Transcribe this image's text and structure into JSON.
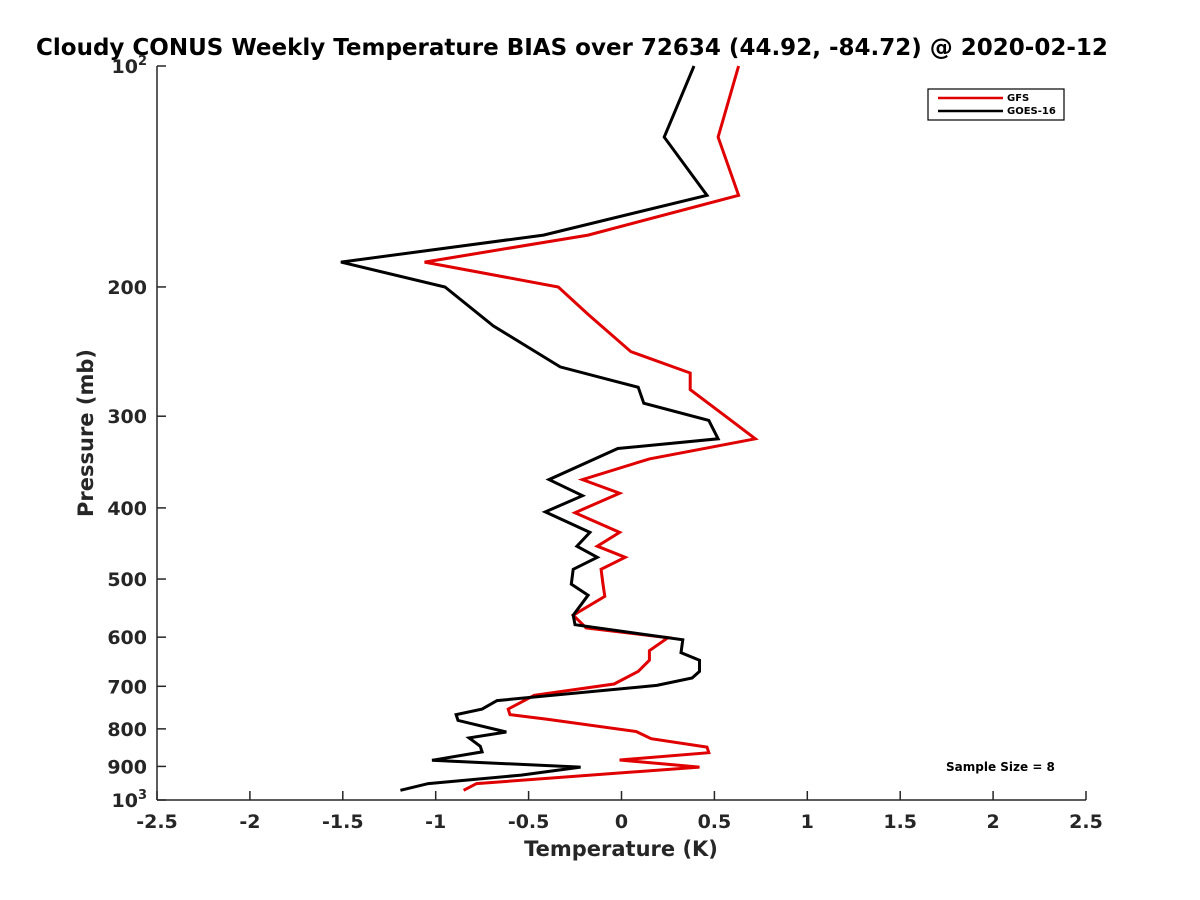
{
  "chart_data": {
    "type": "line",
    "title": "Cloudy CONUS Weekly Temperature BIAS over 72634 (44.92, -84.72) @ 2020-02-12",
    "xlabel": "Temperature (K)",
    "ylabel": "Pressure (mb)",
    "xlim": [
      -2.5,
      2.5
    ],
    "ylim": [
      100,
      1000
    ],
    "y_scale": "log",
    "y_reversed": true,
    "grid": false,
    "legend_position": "top-right",
    "x_ticks": [
      -2.5,
      -2,
      -1.5,
      -1,
      -0.5,
      0,
      0.5,
      1,
      1.5,
      2,
      2.5
    ],
    "x_tick_labels": [
      "-2.5",
      "-2",
      "-1.5",
      "-1",
      "-0.5",
      "0",
      "0.5",
      "1",
      "1.5",
      "2",
      "2.5"
    ],
    "y_ticks": [
      100,
      200,
      300,
      400,
      500,
      600,
      700,
      800,
      900,
      1000
    ],
    "y_tick_labels": [
      {
        "base": "10",
        "exp": "2"
      },
      {
        "base": "200",
        "exp": ""
      },
      {
        "base": "300",
        "exp": ""
      },
      {
        "base": "400",
        "exp": ""
      },
      {
        "base": "500",
        "exp": ""
      },
      {
        "base": "600",
        "exp": ""
      },
      {
        "base": "700",
        "exp": ""
      },
      {
        "base": "800",
        "exp": ""
      },
      {
        "base": "900",
        "exp": ""
      },
      {
        "base": "10",
        "exp": "3"
      }
    ],
    "annotation": "Sample Size = 8",
    "series": [
      {
        "name": "GFS",
        "color": "#e00000",
        "points": [
          [
            0.63,
            100
          ],
          [
            0.52,
            125
          ],
          [
            0.63,
            150
          ],
          [
            -0.18,
            170
          ],
          [
            -1.06,
            185
          ],
          [
            -0.34,
            200
          ],
          [
            -0.18,
            218
          ],
          [
            0.05,
            245
          ],
          [
            0.37,
            262
          ],
          [
            0.37,
            276
          ],
          [
            0.56,
            300
          ],
          [
            0.72,
            322
          ],
          [
            0.15,
            343
          ],
          [
            -0.21,
            366
          ],
          [
            -0.01,
            382
          ],
          [
            -0.25,
            406
          ],
          [
            -0.01,
            432
          ],
          [
            -0.13,
            451
          ],
          [
            0.02,
            467
          ],
          [
            -0.11,
            485
          ],
          [
            -0.1,
            507
          ],
          [
            -0.09,
            528
          ],
          [
            -0.26,
            560
          ],
          [
            -0.19,
            583
          ],
          [
            0.25,
            601
          ],
          [
            0.15,
            626
          ],
          [
            0.15,
            645
          ],
          [
            0.09,
            668
          ],
          [
            -0.04,
            695
          ],
          [
            -0.47,
            720
          ],
          [
            -0.61,
            752
          ],
          [
            -0.6,
            765
          ],
          [
            -0.4,
            776
          ],
          [
            0.08,
            807
          ],
          [
            0.16,
            825
          ],
          [
            0.46,
            847
          ],
          [
            0.47,
            862
          ],
          [
            -0.01,
            882
          ],
          [
            0.42,
            902
          ],
          [
            -0.78,
            950
          ],
          [
            -0.85,
            970
          ]
        ]
      },
      {
        "name": "GOES-16",
        "color": "#000000",
        "points": [
          [
            0.39,
            100
          ],
          [
            0.23,
            125
          ],
          [
            0.46,
            150
          ],
          [
            -0.42,
            170
          ],
          [
            -1.51,
            185
          ],
          [
            -0.95,
            200
          ],
          [
            -0.69,
            226
          ],
          [
            -0.33,
            257
          ],
          [
            0.09,
            274
          ],
          [
            0.12,
            288
          ],
          [
            0.47,
            304
          ],
          [
            0.52,
            322
          ],
          [
            -0.02,
            332
          ],
          [
            -0.39,
            366
          ],
          [
            -0.21,
            385
          ],
          [
            -0.41,
            405
          ],
          [
            -0.17,
            432
          ],
          [
            -0.24,
            451
          ],
          [
            -0.13,
            467
          ],
          [
            -0.26,
            485
          ],
          [
            -0.27,
            508
          ],
          [
            -0.18,
            526
          ],
          [
            -0.26,
            560
          ],
          [
            -0.25,
            577
          ],
          [
            0.33,
            605
          ],
          [
            0.32,
            630
          ],
          [
            0.42,
            645
          ],
          [
            0.42,
            668
          ],
          [
            0.38,
            682
          ],
          [
            0.19,
            698
          ],
          [
            -0.67,
            732
          ],
          [
            -0.75,
            752
          ],
          [
            -0.89,
            765
          ],
          [
            -0.88,
            779
          ],
          [
            -0.62,
            808
          ],
          [
            -0.82,
            823
          ],
          [
            -0.76,
            845
          ],
          [
            -0.75,
            860
          ],
          [
            -1.02,
            883
          ],
          [
            -0.22,
            902
          ],
          [
            -0.54,
            925
          ],
          [
            -1.04,
            950
          ],
          [
            -1.19,
            970
          ]
        ]
      }
    ]
  }
}
